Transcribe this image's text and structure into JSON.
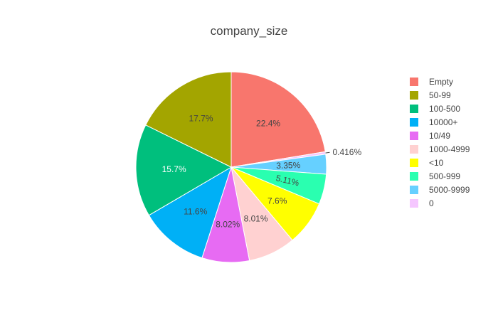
{
  "chart_data": {
    "type": "pie",
    "title": "company_size",
    "labels": [
      "Empty",
      "50-99",
      "100-500",
      "10000+",
      "10/49",
      "1000-4999",
      "<10",
      "500-999",
      "5000-9999",
      "0"
    ],
    "values": [
      22.4,
      17.7,
      15.7,
      11.6,
      8.02,
      8.01,
      7.6,
      5.11,
      3.35,
      0.416
    ],
    "value_labels": [
      "22.4%",
      "17.7%",
      "15.7%",
      "11.6%",
      "8.02%",
      "8.01%",
      "7.6%",
      "5.11%",
      "3.35%",
      "0.416%"
    ],
    "colors": [
      "#f8766d",
      "#a3a500",
      "#00bf7d",
      "#00b0f6",
      "#e76bf3",
      "#ffd1d1",
      "#ffff00",
      "#2affb0",
      "#66d0ff",
      "#f5c6ff"
    ],
    "slice_order": [
      0,
      9,
      8,
      7,
      6,
      5,
      4,
      3,
      2,
      1
    ],
    "legend_order": [
      0,
      1,
      2,
      3,
      4,
      5,
      6,
      7,
      8,
      9
    ],
    "legend_position": "right",
    "direction": "clockwise",
    "start_angle_deg": 0
  }
}
